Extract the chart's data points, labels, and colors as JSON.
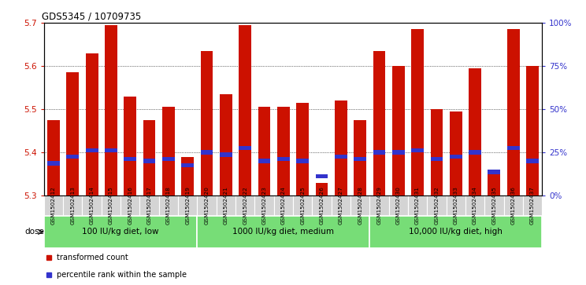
{
  "title": "GDS5345 / 10709735",
  "samples": [
    "GSM1502412",
    "GSM1502413",
    "GSM1502414",
    "GSM1502415",
    "GSM1502416",
    "GSM1502417",
    "GSM1502418",
    "GSM1502419",
    "GSM1502420",
    "GSM1502421",
    "GSM1502422",
    "GSM1502423",
    "GSM1502424",
    "GSM1502425",
    "GSM1502426",
    "GSM1502427",
    "GSM1502428",
    "GSM1502429",
    "GSM1502430",
    "GSM1502431",
    "GSM1502432",
    "GSM1502433",
    "GSM1502434",
    "GSM1502435",
    "GSM1502436",
    "GSM1502437"
  ],
  "bar_values": [
    5.475,
    5.585,
    5.63,
    5.695,
    5.53,
    5.475,
    5.505,
    5.39,
    5.635,
    5.535,
    5.695,
    5.505,
    5.505,
    5.515,
    5.33,
    5.52,
    5.475,
    5.635,
    5.6,
    5.685,
    5.5,
    5.495,
    5.595,
    5.35,
    5.685,
    5.6
  ],
  "blue_values": [
    5.375,
    5.39,
    5.405,
    5.405,
    5.385,
    5.38,
    5.385,
    5.37,
    5.4,
    5.395,
    5.41,
    5.38,
    5.385,
    5.38,
    5.345,
    5.39,
    5.385,
    5.4,
    5.4,
    5.405,
    5.385,
    5.39,
    5.4,
    5.355,
    5.41,
    5.38
  ],
  "bar_color": "#cc1100",
  "blue_color": "#3333cc",
  "ymin": 5.3,
  "ymax": 5.7,
  "yticks": [
    5.3,
    5.4,
    5.5,
    5.6,
    5.7
  ],
  "right_yticks": [
    0,
    25,
    50,
    75,
    100
  ],
  "right_yticklabels": [
    "0%",
    "25%",
    "50%",
    "75%",
    "100%"
  ],
  "groups": [
    {
      "label": "100 IU/kg diet, low",
      "start": 0,
      "end": 8
    },
    {
      "label": "1000 IU/kg diet, medium",
      "start": 8,
      "end": 17
    },
    {
      "label": "10,000 IU/kg diet, high",
      "start": 17,
      "end": 26
    }
  ],
  "group_color": "#77dd77",
  "dose_label": "dose",
  "legend_items": [
    {
      "label": "transformed count",
      "color": "#cc1100"
    },
    {
      "label": "percentile rank within the sample",
      "color": "#3333cc"
    }
  ],
  "bar_width": 0.65,
  "plot_bg": "#ffffff",
  "tick_bg": "#d4d4d4",
  "bar_bottom": 5.3
}
